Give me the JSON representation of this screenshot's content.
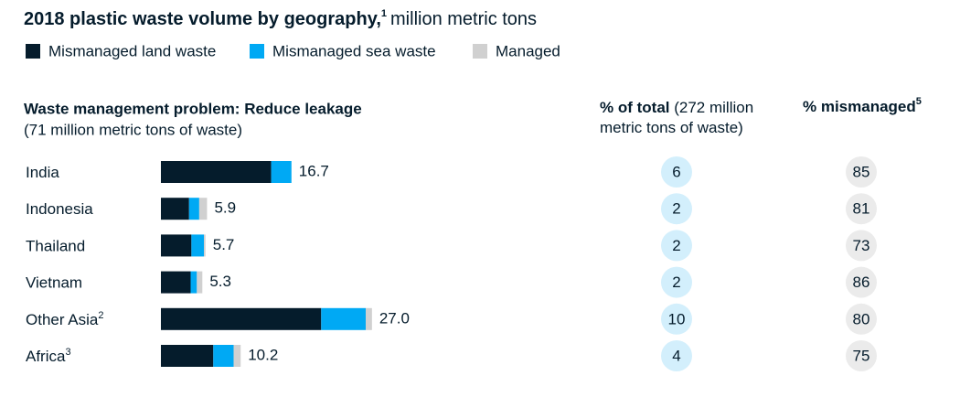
{
  "chart_data": {
    "type": "bar",
    "orientation": "horizontal",
    "stacked": true,
    "title": "2018 plastic waste volume by geography,",
    "title_note": "1",
    "title_unit": "million metric tons",
    "subtitle": "Waste management problem: Reduce leakage",
    "subtitle_note": "(71 million metric tons of waste)",
    "categories": [
      "India",
      "Indonesia",
      "Thailand",
      "Vietnam",
      "Other Asia",
      "Africa"
    ],
    "category_notes": [
      null,
      null,
      null,
      null,
      "2",
      "3"
    ],
    "series": [
      {
        "name": "Mismanaged land waste",
        "color": "#051c2c",
        "values": [
          14.1,
          3.6,
          3.9,
          3.8,
          20.5,
          6.7
        ]
      },
      {
        "name": "Mismanaged sea waste",
        "color": "#00a9f4",
        "values": [
          2.6,
          1.3,
          1.6,
          0.8,
          5.7,
          2.6
        ]
      },
      {
        "name": "Managed",
        "color": "#d0d0d0",
        "values": [
          0,
          1.0,
          0.2,
          0.7,
          0.8,
          0.9
        ]
      }
    ],
    "totals": [
      16.7,
      5.9,
      5.7,
      5.3,
      27.0,
      10.2
    ],
    "total_labels": [
      "16.7",
      "5.9",
      "5.7",
      "5.3",
      "27.0",
      "10.2"
    ],
    "pct_total_header": "% of total",
    "pct_total_note": "(272 million metric tons of waste)",
    "pct_total": [
      6,
      2,
      2,
      2,
      10,
      4
    ],
    "pct_mismanaged_header": "% mismanaged",
    "pct_mismanaged_note": "5",
    "pct_mismanaged": [
      85,
      81,
      73,
      86,
      80,
      75
    ]
  }
}
